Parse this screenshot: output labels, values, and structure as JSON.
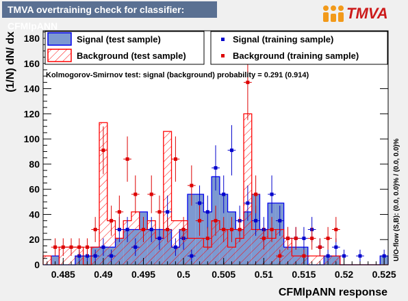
{
  "header": {
    "title": "TMVA overtraining check for classifier: CFMlpANN",
    "logo_text": "TMVA"
  },
  "legend": {
    "signal_test": "Signal (test sample)",
    "background_test": "Background (test sample)",
    "signal_training": "Signal (training sample)",
    "background_training": "Background (training sample)"
  },
  "ks_text": "Kolmogorov-Smirnov test: signal (background) probability = 0.291 (0.914)",
  "overflow_text": "U/O-flow (S,B): (0.0, 0.0)% / (0.0, 0.0)%",
  "colors": {
    "signal_fill": "#7d99d1",
    "signal_line": "#0000ee",
    "background_line": "#ff0000",
    "signal_marker": "#0000cc",
    "background_marker": "#dd0000",
    "title_bg": "#5a7092",
    "frame_bg": "#f0f0f0"
  },
  "chart_data": {
    "type": "histogram",
    "xlabel": "CFMlpANN response",
    "ylabel": "(1/N) dN/ dx",
    "xlim": [
      0.4825,
      0.5255
    ],
    "ylim": [
      0,
      186
    ],
    "x_ticks": [
      0.485,
      0.49,
      0.495,
      0.5,
      0.505,
      0.51,
      0.515,
      0.52,
      0.525
    ],
    "x_tick_labels": [
      "0.485",
      "0.49",
      "0.495",
      "0.5",
      "0.505",
      "0.51",
      "0.515",
      "0.52",
      "0.525"
    ],
    "y_ticks": [
      0,
      20,
      40,
      60,
      80,
      100,
      120,
      140,
      160,
      180
    ],
    "y_tick_labels": [
      "0",
      "20",
      "40",
      "60",
      "80",
      "100",
      "120",
      "140",
      "160",
      "180"
    ],
    "bins": {
      "low": [
        0.4825,
        0.4835,
        0.4845,
        0.4855,
        0.4865,
        0.4875,
        0.4885,
        0.4895,
        0.4905,
        0.4915,
        0.4925,
        0.4935,
        0.4945,
        0.4955,
        0.4965,
        0.4975,
        0.4985,
        0.4995,
        0.5005,
        0.5015,
        0.5025,
        0.5035,
        0.5045,
        0.5055,
        0.5065,
        0.5075,
        0.5085,
        0.5095,
        0.5105,
        0.5115,
        0.5125,
        0.5135,
        0.5145,
        0.5155,
        0.5165,
        0.5175,
        0.5185,
        0.5195,
        0.5205,
        0.5215,
        0.5225,
        0.5235,
        0.5245
      ],
      "width": 0.001
    },
    "series": [
      {
        "name": "Signal (test sample)",
        "style": "filled",
        "values": [
          0,
          7,
          0,
          0,
          7,
          7,
          14,
          14,
          14,
          21,
          28,
          28,
          42,
          28,
          28,
          28,
          14,
          28,
          56,
          56,
          42,
          70,
          56,
          42,
          28,
          42,
          56,
          28,
          49,
          49,
          14,
          14,
          14,
          0,
          0,
          7,
          7,
          0,
          0,
          0,
          0,
          0,
          7
        ]
      },
      {
        "name": "Background (test sample)",
        "style": "hatched",
        "values": [
          7,
          0,
          14,
          14,
          14,
          0,
          14,
          113,
          35,
          21,
          35,
          42,
          28,
          35,
          21,
          106,
          35,
          35,
          21,
          21,
          14,
          35,
          28,
          14,
          21,
          120,
          28,
          28,
          21,
          28,
          21,
          7,
          7,
          7,
          7,
          7,
          7,
          0,
          0,
          0,
          0,
          0,
          0
        ]
      },
      {
        "name": "Signal (training sample)",
        "style": "markers",
        "values": [
          0,
          0,
          0,
          0,
          7,
          7,
          7,
          14,
          7,
          28,
          28,
          14,
          28,
          28,
          21,
          42,
          14,
          21,
          7,
          49,
          42,
          77,
          56,
          91,
          35,
          49,
          35,
          28,
          56,
          35,
          21,
          21,
          21,
          28,
          14,
          7,
          14,
          7,
          0,
          7,
          0,
          0,
          7
        ],
        "errors": [
          0,
          0,
          0,
          0,
          5,
          5,
          5,
          7,
          5,
          10,
          10,
          7,
          10,
          10,
          9,
          13,
          7,
          9,
          5,
          14,
          13,
          18,
          15,
          20,
          12,
          14,
          12,
          10,
          15,
          12,
          9,
          9,
          9,
          10,
          7,
          5,
          7,
          5,
          0,
          5,
          0,
          0,
          5
        ]
      },
      {
        "name": "Background (training sample)",
        "style": "markers",
        "values": [
          0,
          14,
          14,
          14,
          14,
          14,
          28,
          91,
          35,
          42,
          84,
          56,
          28,
          56,
          42,
          28,
          84,
          28,
          63,
          35,
          21,
          35,
          28,
          28,
          28,
          145,
          56,
          21,
          28,
          7,
          21,
          21,
          7,
          21,
          14,
          21,
          28,
          0,
          0,
          0,
          0,
          0,
          0
        ],
        "errors": [
          0,
          7,
          7,
          7,
          7,
          7,
          10,
          19,
          12,
          13,
          18,
          15,
          10,
          15,
          13,
          10,
          18,
          10,
          16,
          12,
          9,
          12,
          10,
          10,
          10,
          30,
          15,
          9,
          10,
          5,
          9,
          9,
          5,
          9,
          7,
          9,
          10,
          0,
          0,
          0,
          0,
          0,
          0
        ]
      }
    ],
    "legend_position": "top"
  }
}
